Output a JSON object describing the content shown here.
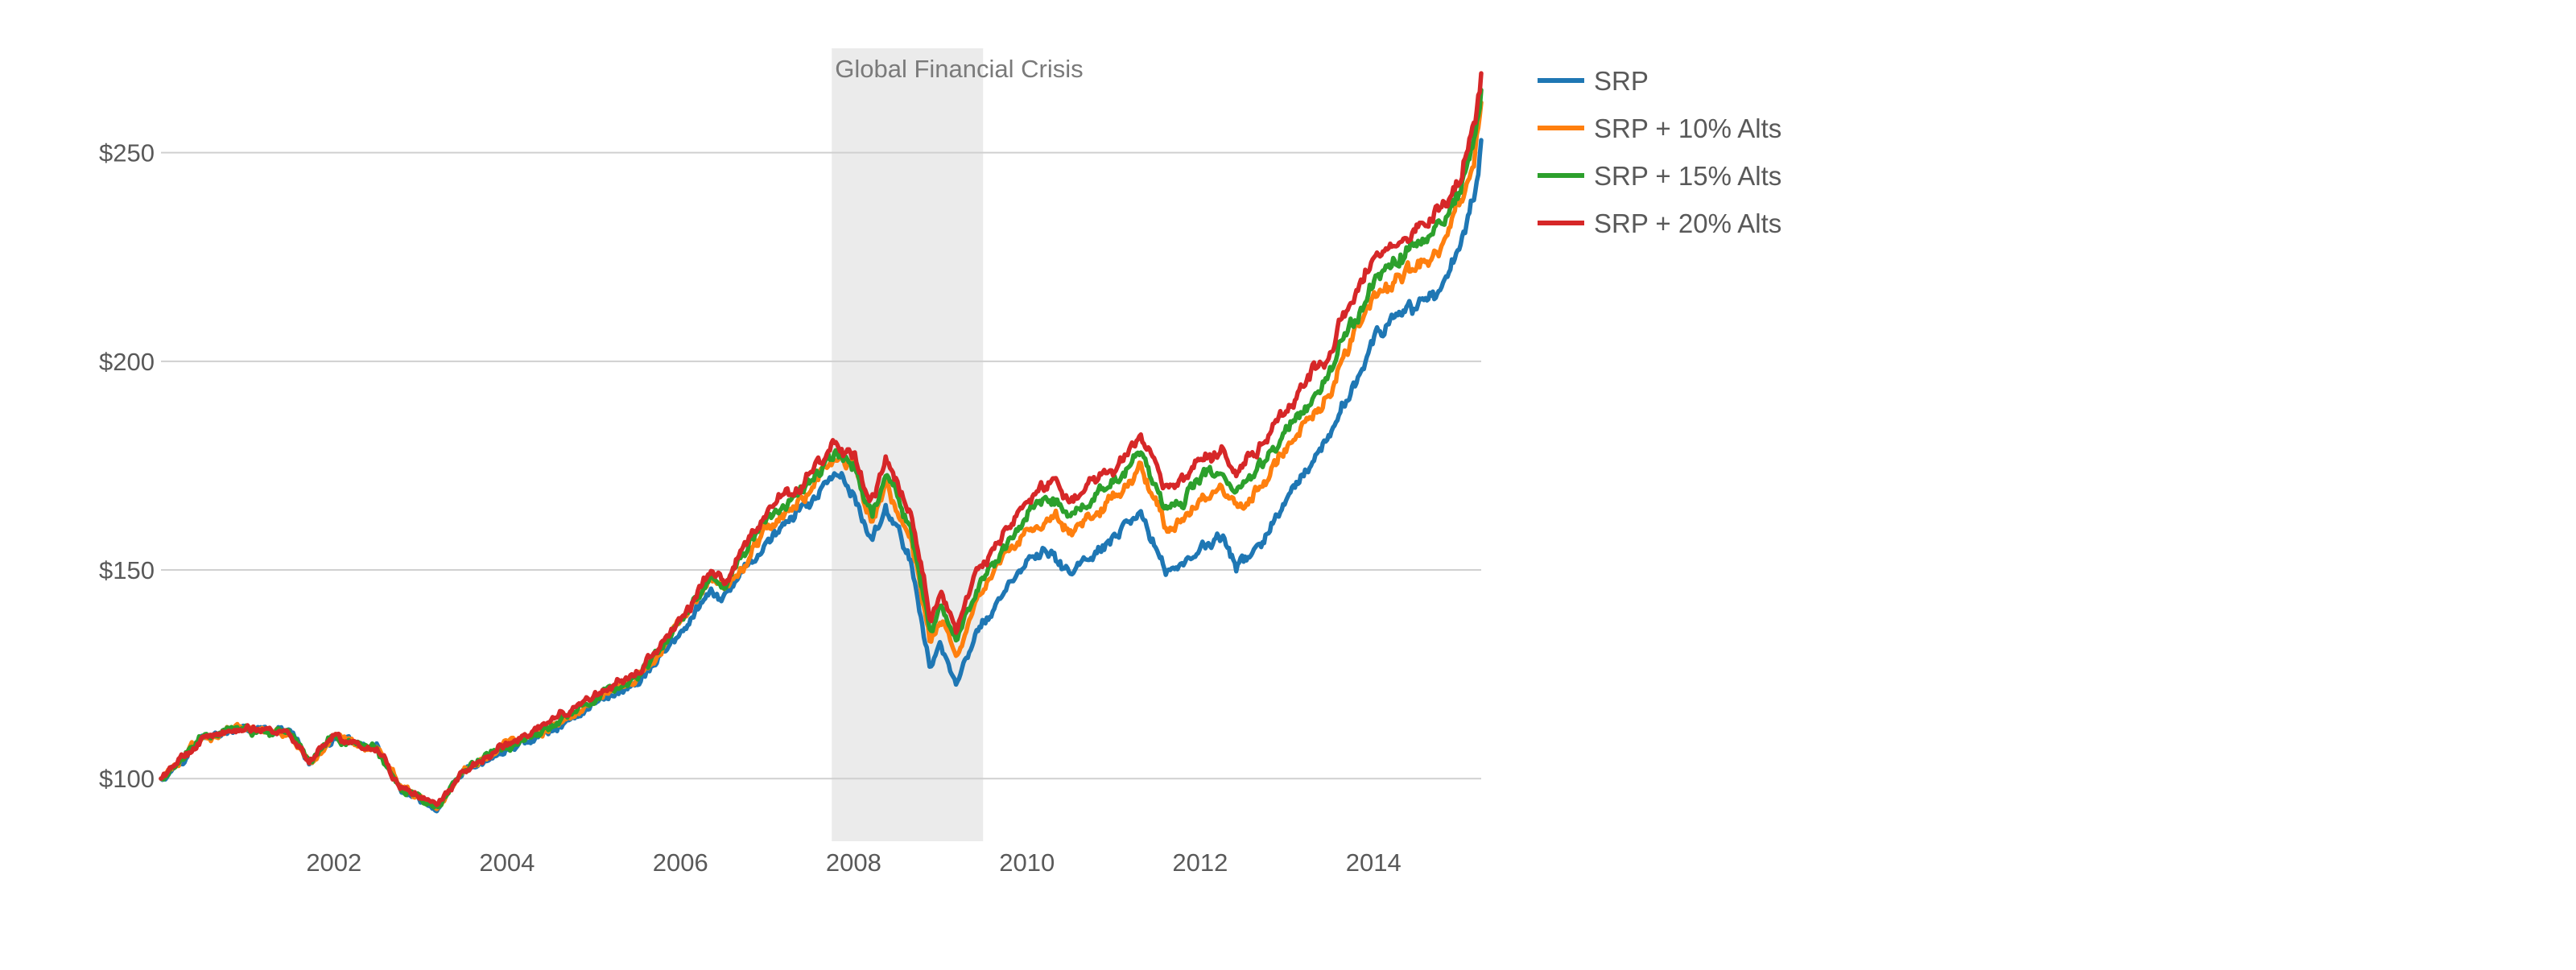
{
  "chart_data": {
    "type": "line",
    "title": "",
    "xlabel": "",
    "ylabel": "",
    "x_range": [
      "2000-01-03",
      "2015-03-31"
    ],
    "ylim": [
      85,
      275
    ],
    "x_ticks": [
      {
        "date": "2002-01-01",
        "label": "2002"
      },
      {
        "date": "2004-01-01",
        "label": "2004"
      },
      {
        "date": "2006-01-01",
        "label": "2006"
      },
      {
        "date": "2008-01-01",
        "label": "2008"
      },
      {
        "date": "2010-01-01",
        "label": "2010"
      },
      {
        "date": "2012-01-01",
        "label": "2012"
      },
      {
        "date": "2014-01-01",
        "label": "2014"
      }
    ],
    "y_ticks": [
      {
        "value": 100,
        "label": "$100"
      },
      {
        "value": 150,
        "label": "$150"
      },
      {
        "value": 200,
        "label": "$200"
      },
      {
        "value": 250,
        "label": "$250"
      }
    ],
    "grid": "horizontal",
    "legend_position": "right",
    "annotation": {
      "label": "Global Financial Crisis",
      "start": "2007-10-01",
      "end": "2009-06-30",
      "color": "#ebebeb"
    },
    "x": [
      "2000-01-03",
      "2000-07-01",
      "2001-01-01",
      "2001-07-01",
      "2001-09-20",
      "2002-01-01",
      "2002-07-01",
      "2002-10-09",
      "2003-03-11",
      "2003-07-01",
      "2004-01-01",
      "2004-07-01",
      "2005-01-01",
      "2005-07-01",
      "2006-01-01",
      "2006-05-10",
      "2006-07-01",
      "2007-01-01",
      "2007-07-15",
      "2007-10-09",
      "2008-01-01",
      "2008-03-17",
      "2008-05-15",
      "2008-09-01",
      "2008-11-20",
      "2009-01-01",
      "2009-03-09",
      "2009-06-01",
      "2010-01-01",
      "2010-04-23",
      "2010-07-01",
      "2011-01-01",
      "2011-04-29",
      "2011-08-08",
      "2011-10-03",
      "2012-01-01",
      "2012-04-01",
      "2012-06-01",
      "2012-10-01",
      "2013-01-01",
      "2013-06-24",
      "2013-09-01",
      "2014-01-01",
      "2014-10-15",
      "2015-01-01",
      "2015-02-27",
      "2015-03-31"
    ],
    "series": [
      {
        "name": "SRP",
        "color": "#1f77b4",
        "values": [
          100,
          110,
          112,
          111,
          103,
          110,
          107,
          97,
          92,
          101,
          107,
          111,
          118,
          123,
          135,
          144,
          143,
          157,
          167,
          172,
          168,
          157,
          165,
          152,
          126,
          133,
          122,
          135,
          152,
          154,
          149,
          157,
          163,
          150,
          151,
          155,
          158,
          150,
          158,
          166,
          180,
          190,
          205,
          218,
          228,
          240,
          253
        ]
      },
      {
        "name": "SRP + 10% Alts",
        "color": "#ff7f0e",
        "values": [
          100,
          110,
          112,
          111,
          104,
          110,
          107,
          98,
          93,
          102,
          108,
          112,
          119,
          124,
          137,
          147,
          145,
          160,
          170,
          176,
          173,
          161,
          170,
          157,
          132,
          139,
          129,
          142,
          160,
          163,
          158,
          167,
          174,
          160,
          161,
          166,
          170,
          164,
          172,
          180,
          192,
          202,
          215,
          228,
          237,
          248,
          262
        ]
      },
      {
        "name": "SRP + 15% Alts",
        "color": "#2ca02c",
        "values": [
          100,
          110,
          112,
          111,
          104,
          110,
          107,
          98,
          93,
          102,
          108,
          112,
          119,
          124,
          137,
          148,
          146,
          162,
          172,
          178,
          175,
          163,
          173,
          160,
          135,
          142,
          132,
          145,
          163,
          167,
          162,
          171,
          178,
          165,
          166,
          171,
          174,
          168,
          176,
          184,
          196,
          206,
          219,
          232,
          241,
          251,
          265
        ]
      },
      {
        "name": "SRP + 20% Alts",
        "color": "#d62728",
        "values": [
          100,
          110,
          112,
          111,
          104,
          110,
          107,
          98,
          93,
          102,
          108,
          113,
          120,
          125,
          138,
          150,
          147,
          164,
          174,
          180,
          178,
          166,
          176,
          163,
          138,
          146,
          136,
          149,
          167,
          171,
          166,
          175,
          183,
          170,
          171,
          176,
          179,
          173,
          181,
          189,
          201,
          211,
          224,
          236,
          244,
          255,
          269
        ]
      }
    ]
  }
}
